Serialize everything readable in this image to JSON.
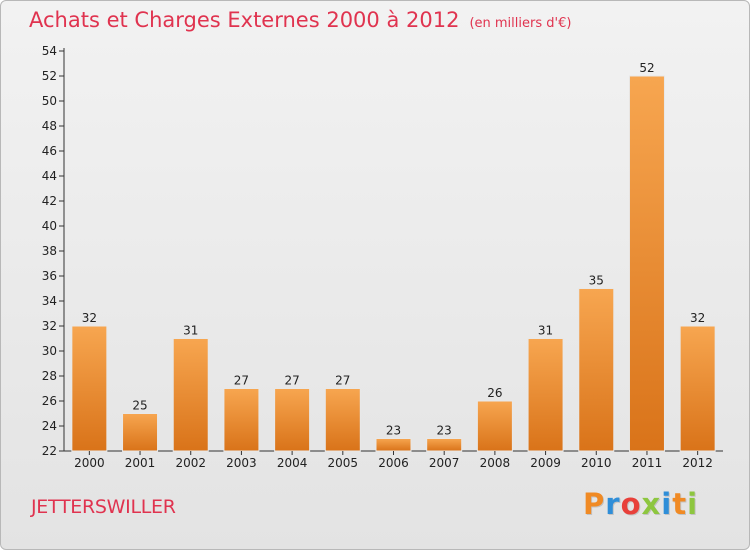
{
  "header": {
    "title": "Achats et Charges Externes 2000 à 2012",
    "unit": "(en milliers d'€)"
  },
  "footer": {
    "commune": "JETTERSWILLER",
    "brand": "Proxiti",
    "brand_colors": [
      "#f08a24",
      "#2f8ed8",
      "#e8403a",
      "#8dc63f",
      "#2f8ed8",
      "#f08a24",
      "#8dc63f"
    ]
  },
  "colors": {
    "title": "#e0334f",
    "bar_light": "#f7a650",
    "bar_dark": "#d97319",
    "axis": "#333333"
  },
  "chart_data": {
    "type": "bar",
    "title": "Achats et Charges Externes 2000 à 2012",
    "categories": [
      "2000",
      "2001",
      "2002",
      "2003",
      "2004",
      "2005",
      "2006",
      "2007",
      "2008",
      "2009",
      "2010",
      "2011",
      "2012"
    ],
    "values": [
      32,
      25,
      31,
      27,
      27,
      27,
      23,
      23,
      26,
      31,
      35,
      52,
      32
    ],
    "ylim": [
      22,
      54
    ],
    "yticks": [
      22,
      24,
      26,
      28,
      30,
      32,
      34,
      36,
      38,
      40,
      42,
      44,
      46,
      48,
      50,
      52,
      54
    ],
    "grid": false,
    "xlabel": "",
    "ylabel": ""
  }
}
